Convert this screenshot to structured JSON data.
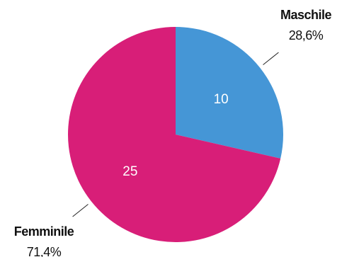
{
  "chart_data": {
    "type": "pie",
    "title": "",
    "categories": [
      "Maschile",
      "Femminile"
    ],
    "values": [
      10,
      25
    ],
    "percent_labels": [
      "28,6%",
      "71,4%"
    ],
    "colors": [
      "#4596D6",
      "#D81E78"
    ],
    "start_angle_deg": 0,
    "direction": "clockwise"
  }
}
